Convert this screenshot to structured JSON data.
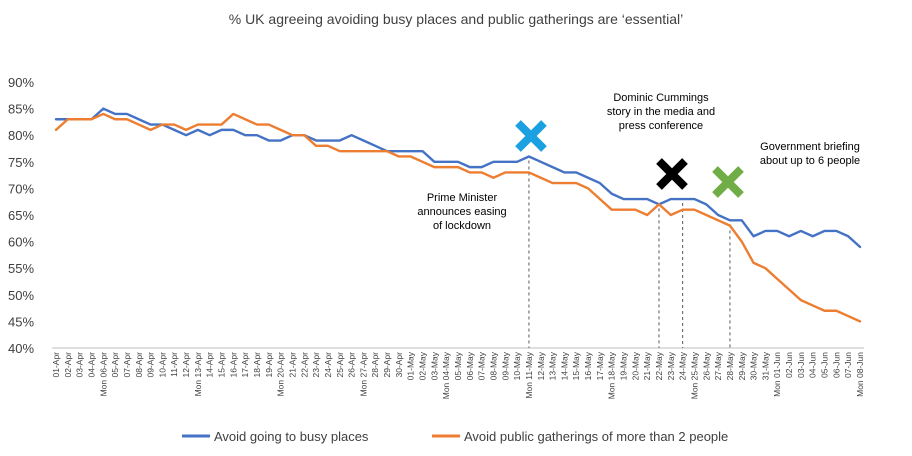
{
  "chart_data": {
    "type": "line",
    "title": "% UK agreeing avoiding busy places and public gatherings are ‘essential’",
    "xlabel": "",
    "ylabel": "",
    "ylim": [
      40,
      90
    ],
    "yticks": [
      "40%",
      "45%",
      "50%",
      "55%",
      "60%",
      "65%",
      "70%",
      "75%",
      "80%",
      "85%",
      "90%"
    ],
    "grid": false,
    "legend_position": "bottom",
    "x": [
      "01-Apr",
      "02-Apr",
      "03-Apr",
      "04-Apr",
      "Mon 06-Apr",
      "05-Apr",
      "07-Apr",
      "08-Apr",
      "09-Apr",
      "10-Apr",
      "11-Apr",
      "12-Apr",
      "Mon 13-Apr",
      "14-Apr",
      "15-Apr",
      "16-Apr",
      "17-Apr",
      "18-Apr",
      "19-Apr",
      "Mon 20-Apr",
      "21-Apr",
      "22-Apr",
      "23-Apr",
      "24-Apr",
      "25-Apr",
      "26-Apr",
      "Mon 27-Apr",
      "28-Apr",
      "29-Apr",
      "30-Apr",
      "01-May",
      "02-May",
      "03-May",
      "Mon 04-May",
      "05-May",
      "06-May",
      "07-May",
      "08-May",
      "09-May",
      "10-May",
      "Mon 11-May",
      "12-May",
      "13-May",
      "14-May",
      "15-May",
      "16-May",
      "17-May",
      "Mon 18-May",
      "19-May",
      "20-May",
      "21-May",
      "22-May",
      "23-May",
      "24-May",
      "Mon 25-May",
      "26-May",
      "27-May",
      "28-May",
      "29-May",
      "30-May",
      "31-May",
      "Mon 01-Jun",
      "02-Jun",
      "03-Jun",
      "04-Jun",
      "05-Jun",
      "06-Jun",
      "07-Jun",
      "Mon 08-Jun"
    ],
    "series": [
      {
        "name": "Avoid going to busy places",
        "color": "#4472C4",
        "values": [
          83,
          83,
          83,
          83,
          85,
          84,
          84,
          83,
          82,
          82,
          81,
          80,
          81,
          80,
          81,
          81,
          80,
          80,
          79,
          79,
          80,
          80,
          79,
          79,
          79,
          80,
          79,
          78,
          77,
          77,
          77,
          77,
          75,
          75,
          75,
          74,
          74,
          75,
          75,
          75,
          76,
          75,
          74,
          73,
          73,
          72,
          71,
          69,
          68,
          68,
          68,
          67,
          68,
          68,
          68,
          67,
          65,
          64,
          64,
          61,
          62,
          62,
          61,
          62,
          61,
          62,
          62,
          61,
          59
        ]
      },
      {
        "name": "Avoid public gatherings of more than 2 people",
        "color": "#ED7D31",
        "values": [
          81,
          83,
          83,
          83,
          84,
          83,
          83,
          82,
          81,
          82,
          82,
          81,
          82,
          82,
          82,
          84,
          83,
          82,
          82,
          81,
          80,
          80,
          78,
          78,
          77,
          77,
          77,
          77,
          77,
          76,
          76,
          75,
          74,
          74,
          74,
          73,
          73,
          72,
          73,
          73,
          73,
          72,
          71,
          71,
          71,
          70,
          68,
          66,
          66,
          66,
          65,
          67,
          65,
          66,
          66,
          65,
          64,
          63,
          60,
          56,
          55,
          53,
          51,
          49,
          48,
          47,
          47,
          46,
          45
        ]
      }
    ],
    "annotations": [
      {
        "lines": [
          "Prime Minister",
          "announces easing",
          "of lockdown"
        ],
        "x_index": 40,
        "marker_color": "#1BA1E2"
      },
      {
        "lines": [
          "Dominic Cummings",
          "story in the media and",
          "press conference"
        ],
        "x_indices": [
          51,
          53
        ],
        "marker_color": "#000000"
      },
      {
        "lines": [
          "Government briefing",
          "about up to 6 people"
        ],
        "x_index": 57,
        "marker_color": "#70AD47"
      }
    ]
  }
}
